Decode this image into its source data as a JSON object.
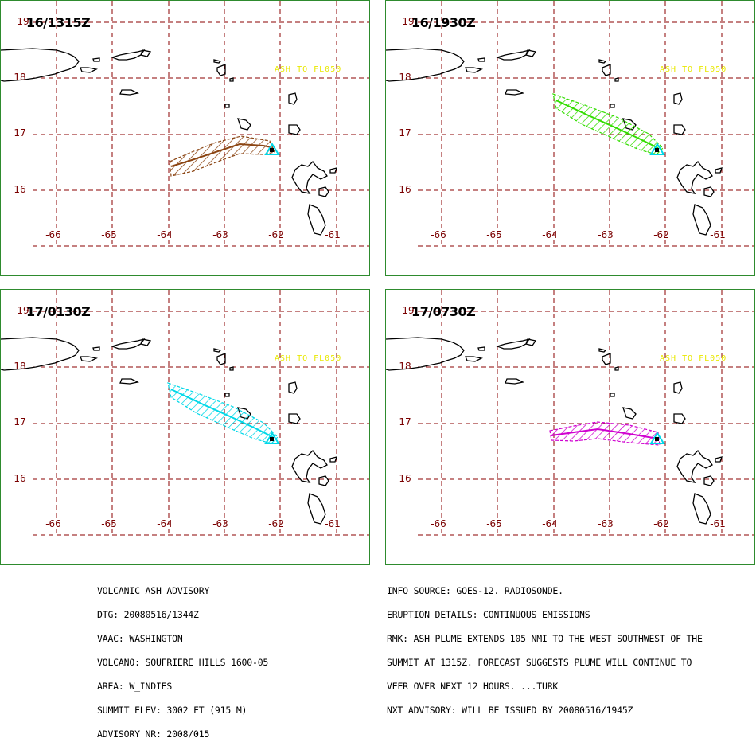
{
  "panels": [
    {
      "time": "16/1315Z",
      "plume": "p1",
      "color": "#8b4513"
    },
    {
      "time": "16/1930Z",
      "plume": "p2",
      "color": "#33dd00"
    },
    {
      "time": "17/0130Z",
      "plume": "p2",
      "color": "#00d8e8"
    },
    {
      "time": "17/0730Z",
      "plume": "p3",
      "color": "#d000d0"
    }
  ],
  "map": {
    "lat_labels": [
      "19",
      "18",
      "17",
      "16"
    ],
    "lon_labels": [
      "-66",
      "-65",
      "-64",
      "-63",
      "-62",
      "-61"
    ],
    "ash_label": "ASH TO FL050",
    "grid_color": "#8b0000",
    "volcano_marker_color": "#00d8e8"
  },
  "advisory_left": [
    "VOLCANIC ASH ADVISORY",
    "DTG: 20080516/1344Z",
    "VAAC: WASHINGTON",
    "VOLCANO: SOUFRIERE HILLS 1600-05",
    "AREA: W_INDIES",
    "SUMMIT ELEV: 3002 FT (915 M)",
    "ADVISORY NR: 2008/015"
  ],
  "advisory_right": [
    "INFO SOURCE: GOES-12. RADIOSONDE.",
    "ERUPTION DETAILS: CONTINUOUS EMISSIONS",
    "RMK: ASH PLUME EXTENDS 105 NMI TO THE WEST SOUTHWEST OF THE",
    "SUMMIT AT 1315Z. FORECAST SUGGESTS PLUME WILL CONTINUE TO",
    "VEER OVER NEXT 12 HOURS. ...TURK",
    "NXT ADVISORY: WILL BE ISSUED BY 20080516/1945Z"
  ]
}
